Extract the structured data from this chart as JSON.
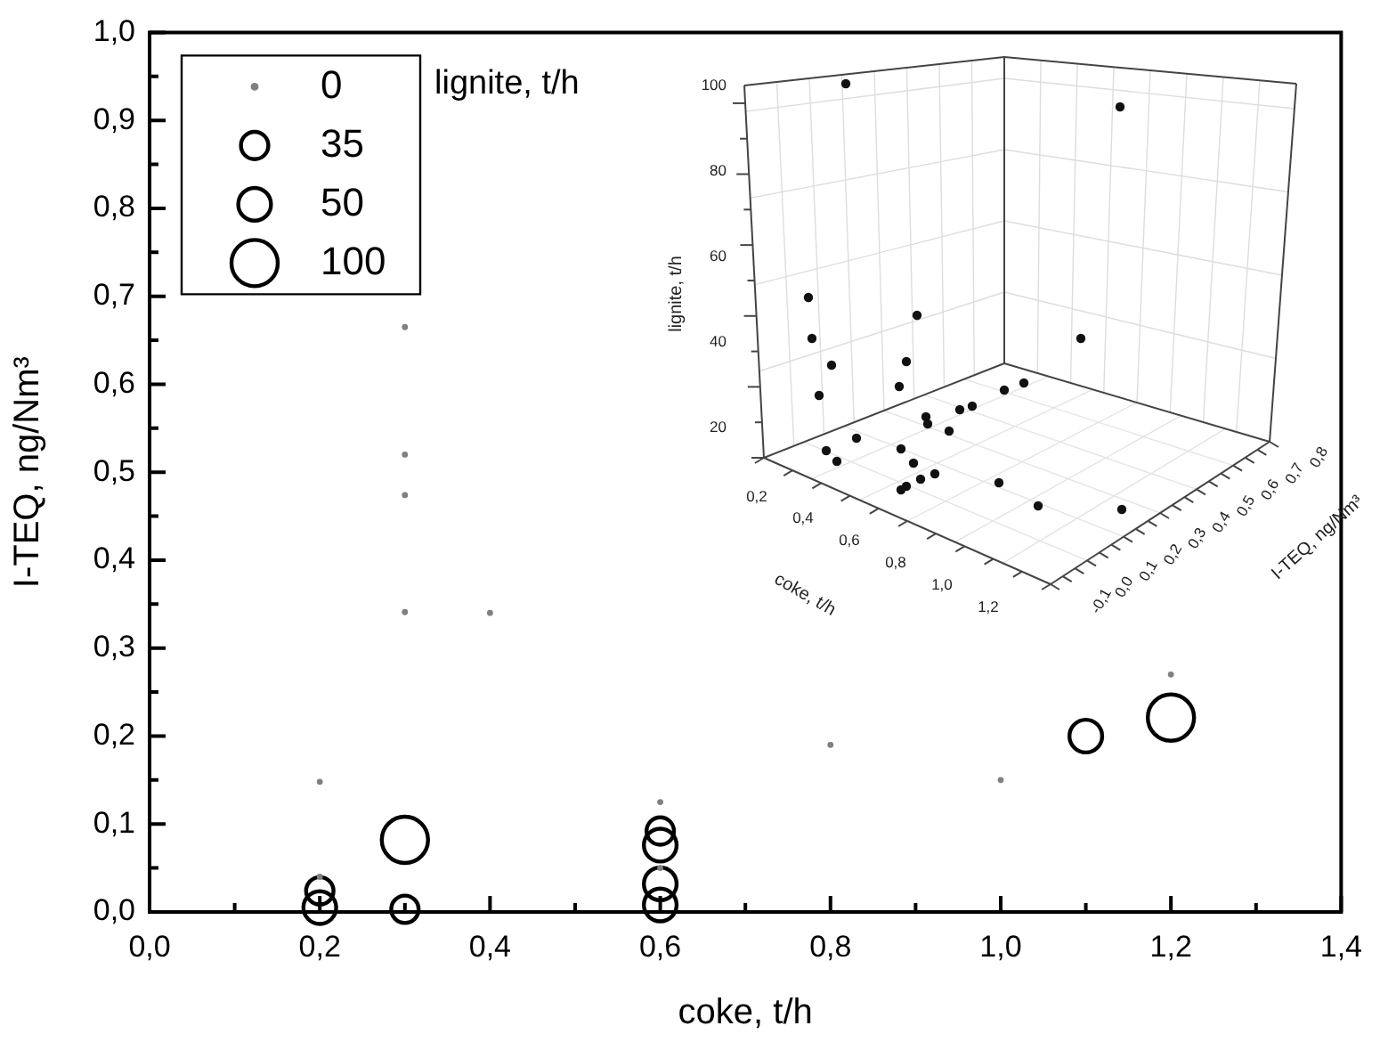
{
  "chart_data": {
    "type": "bubble",
    "xlabel": "coke, t/h",
    "ylabel": "I-TEQ, ng/Nm³",
    "legend_title": "lignite, t/h",
    "legend": "top left",
    "size_legend": [
      35,
      50,
      100
    ],
    "xlim": [
      0,
      1.4
    ],
    "ylim": [
      0,
      1.0
    ],
    "xticks": [
      {
        "value": 0,
        "label": "0,0"
      },
      {
        "value": 0.1,
        "label": null
      },
      {
        "value": 0.2,
        "label": "0,2"
      },
      {
        "value": 0.3,
        "label": null
      },
      {
        "value": 0.4,
        "label": "0,4"
      },
      {
        "value": 0.5,
        "label": null
      },
      {
        "value": 0.6,
        "label": "0,6"
      },
      {
        "value": 0.7,
        "label": null
      },
      {
        "value": 0.8,
        "label": "0,8"
      },
      {
        "value": 0.9,
        "label": null
      },
      {
        "value": 1.0,
        "label": "1,0"
      },
      {
        "value": 1.1,
        "label": null
      },
      {
        "value": 1.2,
        "label": "1,2"
      },
      {
        "value": 1.3,
        "label": null
      },
      {
        "value": 1.4,
        "label": "1,4"
      }
    ],
    "yticks": [
      {
        "value": 0,
        "label": "0,0"
      },
      {
        "value": 0.05,
        "label": null
      },
      {
        "value": 0.1,
        "label": "0,1"
      },
      {
        "value": 0.15,
        "label": null
      },
      {
        "value": 0.2,
        "label": "0,2"
      },
      {
        "value": 0.25,
        "label": null
      },
      {
        "value": 0.3,
        "label": "0,3"
      },
      {
        "value": 0.35,
        "label": null
      },
      {
        "value": 0.4,
        "label": "0,4"
      },
      {
        "value": 0.45,
        "label": null
      },
      {
        "value": 0.5,
        "label": "0,5"
      },
      {
        "value": 0.55,
        "label": null
      },
      {
        "value": 0.6,
        "label": "0,6"
      },
      {
        "value": 0.65,
        "label": null
      },
      {
        "value": 0.7,
        "label": "0,7"
      },
      {
        "value": 0.75,
        "label": null
      },
      {
        "value": 0.8,
        "label": "0,8"
      },
      {
        "value": 0.85,
        "label": null
      },
      {
        "value": 0.9,
        "label": "0,9"
      },
      {
        "value": 0.95,
        "label": null
      },
      {
        "value": 1.0,
        "label": "1,0"
      }
    ],
    "series": [
      {
        "type": "scatter",
        "name": "0",
        "color": "#808080",
        "marker": "circle",
        "x": [
          0.2,
          0.2,
          0.3,
          0.3,
          0.3,
          0.3,
          0.4,
          0.6,
          0.6,
          0.8,
          1.0,
          1.2
        ],
        "values": [
          0.148,
          0.04,
          0.665,
          0.52,
          0.474,
          0.341,
          0.34,
          0.125,
          0.05,
          0.19,
          0.15,
          0.27
        ]
      },
      {
        "color": "#000000",
        "x": [
          0.2,
          0.2,
          0.3,
          0.3,
          0.6,
          0.6,
          0.6,
          0.6,
          1.1,
          1.2
        ],
        "values": [
          0.024,
          0.005,
          0.082,
          0.003,
          0.092,
          0.076,
          0.032,
          0.008,
          0.2,
          0.221
        ],
        "sizes": [
          35,
          50,
          100,
          35,
          35,
          50,
          50,
          50,
          50,
          100
        ]
      }
    ],
    "annotations": [
      "lignite, t/h",
      "coke, t/h",
      "I-TEQ, ng/Nm³",
      "20",
      "40",
      "60",
      "80",
      "100",
      "0,2",
      "0,4",
      "0,6",
      "0,8",
      "1,0",
      "1,2",
      "-0,1",
      "0,0",
      "0,1",
      "0,2",
      "0,3",
      "0,4",
      "0,5",
      "0,6",
      "0,7",
      "0,8"
    ]
  }
}
